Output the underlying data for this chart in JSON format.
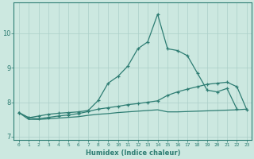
{
  "xlabel": "Humidex (Indice chaleur)",
  "x": [
    0,
    1,
    2,
    3,
    4,
    5,
    6,
    7,
    8,
    9,
    10,
    11,
    12,
    13,
    14,
    15,
    16,
    17,
    18,
    19,
    20,
    21,
    22,
    23
  ],
  "line1": [
    7.7,
    7.55,
    7.6,
    7.65,
    7.68,
    7.7,
    7.72,
    7.76,
    8.05,
    8.55,
    8.75,
    9.05,
    9.55,
    9.75,
    10.55,
    9.55,
    9.5,
    9.35,
    8.85,
    8.35,
    8.3,
    8.4,
    7.8,
    null
  ],
  "line2": [
    7.7,
    7.55,
    7.52,
    7.56,
    7.6,
    7.63,
    7.67,
    7.73,
    7.8,
    7.84,
    7.88,
    7.93,
    7.96,
    8.0,
    8.04,
    8.2,
    8.3,
    8.38,
    8.45,
    8.52,
    8.55,
    8.58,
    8.45,
    7.78
  ],
  "line3": [
    7.7,
    7.5,
    7.5,
    7.52,
    7.54,
    7.56,
    7.58,
    7.62,
    7.65,
    7.67,
    7.7,
    7.72,
    7.74,
    7.76,
    7.78,
    7.72,
    7.72,
    7.73,
    7.74,
    7.75,
    7.76,
    7.77,
    7.78,
    7.8
  ],
  "line_color": "#2e7d73",
  "bg_color": "#cce8e0",
  "grid_color": "#aacfc8",
  "tick_color": "#2e7d73",
  "ylim": [
    6.9,
    10.9
  ],
  "yticks": [
    7,
    8,
    9,
    10
  ],
  "xticks": [
    0,
    1,
    2,
    3,
    4,
    5,
    6,
    7,
    8,
    9,
    10,
    11,
    12,
    13,
    14,
    15,
    16,
    17,
    18,
    19,
    20,
    21,
    22,
    23
  ]
}
